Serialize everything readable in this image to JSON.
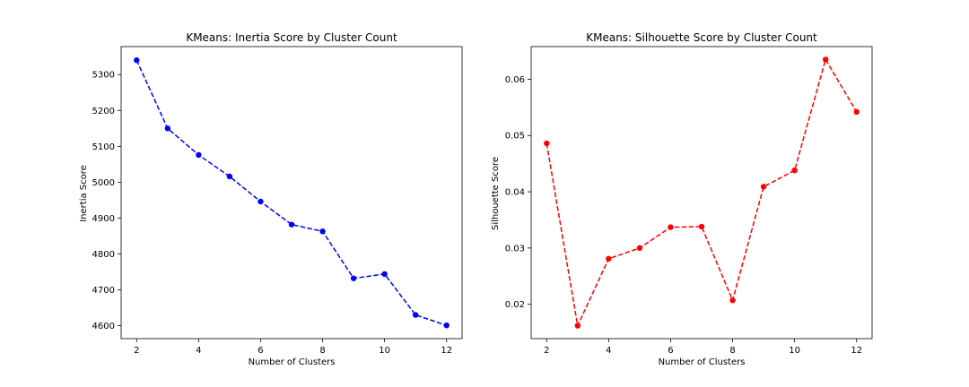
{
  "chart_data": [
    {
      "type": "line",
      "title": "KMeans: Inertia Score by Cluster Count",
      "xlabel": "Number of Clusters",
      "ylabel": "Inertia Score",
      "x": [
        2,
        3,
        4,
        5,
        6,
        7,
        8,
        9,
        10,
        11,
        12
      ],
      "series": [
        {
          "values": [
            5340,
            5150,
            5076,
            5016,
            4946,
            4882,
            4863,
            4732,
            4744,
            4630,
            4601
          ],
          "color": "#0000ff",
          "linestyle": "dashed",
          "marker": "circle"
        }
      ],
      "xticks": [
        2,
        4,
        6,
        8,
        10,
        12
      ],
      "yticks": [
        4600,
        4700,
        4800,
        4900,
        5000,
        5100,
        5200,
        5300
      ],
      "xlim": [
        1.5,
        12.5
      ],
      "ylim": [
        4564,
        5378
      ],
      "grid": false,
      "legend": false
    },
    {
      "type": "line",
      "title": "KMeans: Silhouette Score by Cluster Count",
      "xlabel": "Number of Clusters",
      "ylabel": "Silhouette Score",
      "x": [
        2,
        3,
        4,
        5,
        6,
        7,
        8,
        9,
        10,
        11,
        12
      ],
      "series": [
        {
          "values": [
            0.0486,
            0.0162,
            0.0281,
            0.03,
            0.0337,
            0.0338,
            0.0207,
            0.0409,
            0.0438,
            0.0635,
            0.0542
          ],
          "color": "#ff0000",
          "linestyle": "dashed",
          "marker": "circle"
        }
      ],
      "xticks": [
        2,
        4,
        6,
        8,
        10,
        12
      ],
      "yticks": [
        0.02,
        0.03,
        0.04,
        0.05,
        0.06
      ],
      "ytick_labels": [
        "0.02",
        "0.03",
        "0.04",
        "0.05",
        "0.06"
      ],
      "xlim": [
        1.5,
        12.5
      ],
      "ylim": [
        0.0139,
        0.0658
      ],
      "grid": false,
      "legend": false
    }
  ]
}
